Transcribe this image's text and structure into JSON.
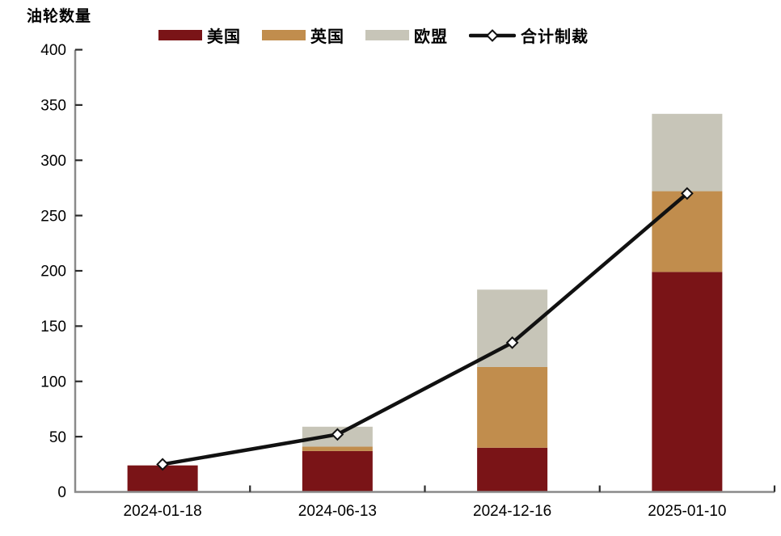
{
  "chart_data": {
    "type": "bar",
    "subtype": "stacked-bar-with-line-overlay",
    "title": "油轮数量",
    "categories": [
      "2024-01-18",
      "2024-06-13",
      "2024-12-16",
      "2025-01-10"
    ],
    "series": [
      {
        "key": "us",
        "name": "美国",
        "type": "bar",
        "color": "#7A1417",
        "values": [
          24,
          37,
          40,
          199
        ]
      },
      {
        "key": "uk",
        "name": "英国",
        "type": "bar",
        "color": "#C18D4D",
        "values": [
          0,
          4,
          73,
          73
        ]
      },
      {
        "key": "eu",
        "name": "欧盟",
        "type": "bar",
        "color": "#C7C5B8",
        "values": [
          0,
          18,
          70,
          70
        ]
      },
      {
        "key": "total",
        "name": "合计制裁",
        "type": "line",
        "color": "#111111",
        "marker": "diamond",
        "marker_fill": "#ffffff",
        "values": [
          25,
          52,
          135,
          270
        ]
      }
    ],
    "ylim": [
      0,
      400
    ],
    "yticks": [
      0,
      50,
      100,
      150,
      200,
      250,
      300,
      350,
      400
    ],
    "xlabel": "",
    "ylabel": "油轮数量",
    "grid": false,
    "legend_position": "top"
  },
  "axis_style": {
    "axis_line_color": "#8A8A8A",
    "tick_color": "#2B2B2B",
    "label_color": "#000000"
  }
}
